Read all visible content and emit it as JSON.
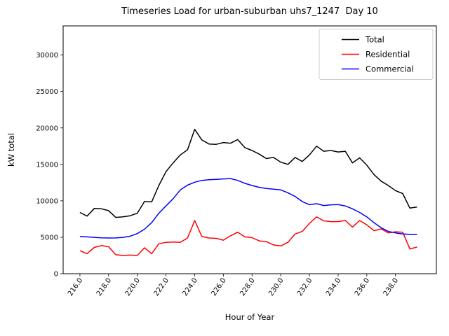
{
  "figure": {
    "title": "Timeseries Load for urban-suburban uhs7_1247  Day 10",
    "xlabel": "Hour of Year",
    "ylabel": "kW total"
  },
  "legend": {
    "position": "upper right",
    "border_color": "#cccccc",
    "items": [
      {
        "label": "Total",
        "color": "#000000"
      },
      {
        "label": "Residential",
        "color": "#ff0000"
      },
      {
        "label": "Commercial",
        "color": "#0000ff"
      }
    ]
  },
  "chart_data": {
    "type": "line",
    "title": "Timeseries Load for urban-suburban uhs7_1247  Day 10",
    "xlabel": "Hour of Year",
    "ylabel": "kW total",
    "grid": false,
    "xlim": [
      214.83,
      240.85
    ],
    "ylim": [
      0,
      34000
    ],
    "xtick_labels": [
      "216.0",
      "218.0",
      "220.0",
      "222.0",
      "224.0",
      "226.0",
      "228.0",
      "230.0",
      "232.0",
      "234.0",
      "236.0",
      "238.0"
    ],
    "xticks": [
      216,
      218,
      220,
      222,
      224,
      226,
      228,
      230,
      232,
      234,
      236,
      238
    ],
    "yticks": [
      0,
      5000,
      10000,
      15000,
      20000,
      25000,
      30000
    ],
    "x": [
      216,
      216.5,
      217,
      217.5,
      218,
      218.5,
      219,
      219.5,
      220,
      220.5,
      221,
      221.5,
      222,
      222.5,
      223,
      223.5,
      224,
      224.5,
      225,
      225.5,
      226,
      226.5,
      227,
      227.5,
      228,
      228.5,
      229,
      229.5,
      230,
      230.5,
      231,
      231.5,
      232,
      232.5,
      233,
      233.5,
      234,
      234.5,
      235,
      235.5,
      236,
      236.5,
      237,
      237.5,
      238,
      238.5,
      239,
      239.5
    ],
    "series": [
      {
        "name": "Total",
        "color": "#000000",
        "values": [
          8400,
          7900,
          8950,
          8900,
          8650,
          7720,
          7800,
          7950,
          8300,
          9900,
          9850,
          12100,
          14000,
          15200,
          16300,
          17000,
          19800,
          18350,
          17800,
          17750,
          18000,
          17900,
          18400,
          17300,
          16900,
          16400,
          15800,
          15950,
          15300,
          15000,
          15950,
          15400,
          16300,
          17500,
          16800,
          16900,
          16700,
          16800,
          15200,
          15900,
          14900,
          13600,
          12700,
          12100,
          11400,
          11000,
          9000,
          9150
        ]
      },
      {
        "name": "Residential",
        "color": "#ff0000",
        "values": [
          3150,
          2750,
          3600,
          3850,
          3700,
          2600,
          2500,
          2550,
          2500,
          3550,
          2750,
          4100,
          4300,
          4350,
          4300,
          4900,
          7300,
          5100,
          4900,
          4850,
          4600,
          5200,
          5700,
          5050,
          4950,
          4500,
          4400,
          3950,
          3800,
          4300,
          5450,
          5800,
          6900,
          7800,
          7250,
          7150,
          7150,
          7300,
          6400,
          7300,
          6700,
          5900,
          6150,
          5600,
          5750,
          5700,
          3400,
          3650
        ]
      },
      {
        "name": "Commercial",
        "color": "#0000ff",
        "values": [
          5100,
          5050,
          4980,
          4930,
          4900,
          4910,
          4980,
          5150,
          5500,
          6100,
          7000,
          8300,
          9300,
          10300,
          11500,
          12150,
          12550,
          12800,
          12900,
          12950,
          13000,
          13050,
          12800,
          12400,
          12100,
          11850,
          11700,
          11600,
          11500,
          11100,
          10600,
          9900,
          9470,
          9600,
          9350,
          9450,
          9480,
          9300,
          8900,
          8400,
          7800,
          7000,
          6300,
          5800,
          5600,
          5450,
          5400,
          5400
        ]
      }
    ]
  }
}
